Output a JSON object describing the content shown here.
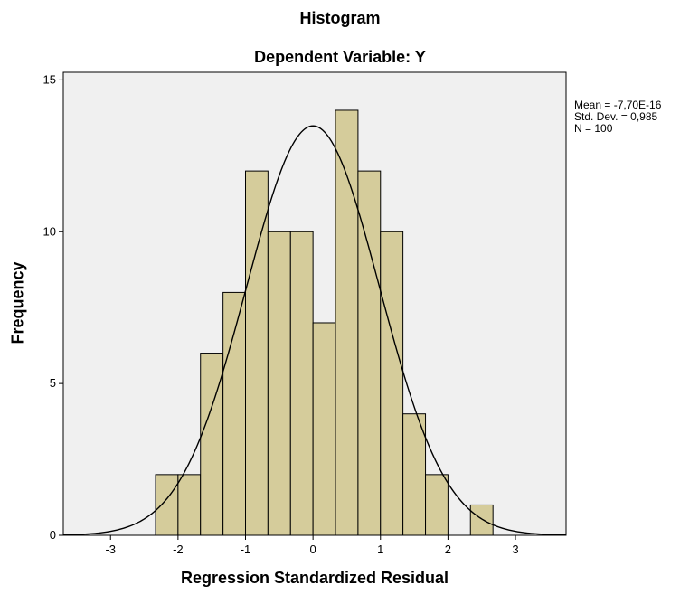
{
  "chart_data": {
    "type": "bar",
    "subtype": "histogram",
    "title": "Histogram",
    "subtitle": "Dependent Variable: Y",
    "xlabel": "Regression Standardized Residual",
    "ylabel": "Frequency",
    "xlim": [
      -3.7,
      3.75
    ],
    "ylim": [
      0,
      15.25
    ],
    "xticks": [
      -3,
      -2,
      -1,
      0,
      1,
      2,
      3
    ],
    "xtick_labels": [
      "-3",
      "-2",
      "-1",
      "0",
      "1",
      "2",
      "3"
    ],
    "yticks": [
      0,
      5,
      10,
      15
    ],
    "ytick_labels": [
      "0",
      "5",
      "10",
      "15"
    ],
    "bin_width": 0.333,
    "bin_edges": [
      -2.333,
      -2.0,
      -1.667,
      -1.333,
      -1.0,
      -0.667,
      -0.333,
      0.0,
      0.333,
      0.667,
      1.0,
      1.333,
      1.667,
      2.0,
      2.333,
      2.667
    ],
    "values": [
      2,
      2,
      6,
      8,
      12,
      10,
      10,
      7,
      14,
      12,
      10,
      4,
      2,
      0,
      1
    ],
    "normal_curve": {
      "mean": 0,
      "std": 0.985,
      "n": 100
    },
    "legend": [
      "Mean = -7,70E-16",
      "Std. Dev. = 0,985",
      "N = 100"
    ],
    "legend_position": "right",
    "grid": false,
    "colors": {
      "plot_background": "#f0f0f0",
      "bar_fill": "#d5cc9b",
      "bar_stroke": "#000000",
      "curve": "#000000"
    }
  }
}
